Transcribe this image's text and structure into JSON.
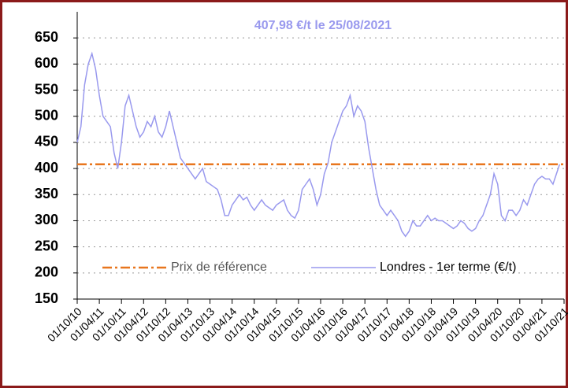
{
  "chart_data": {
    "type": "line",
    "title": "407,98 €/t le 25/08/2021",
    "x": [
      "01/10/10",
      "01/11/10",
      "01/12/10",
      "01/01/11",
      "01/02/11",
      "01/03/11",
      "01/04/11",
      "01/05/11",
      "01/06/11",
      "01/07/11",
      "01/08/11",
      "01/09/11",
      "01/10/11",
      "01/11/11",
      "01/12/11",
      "01/01/12",
      "01/02/12",
      "01/03/12",
      "01/04/12",
      "01/05/12",
      "01/06/12",
      "01/07/12",
      "01/08/12",
      "01/09/12",
      "01/10/12",
      "01/11/12",
      "01/12/12",
      "01/01/13",
      "01/02/13",
      "01/03/13",
      "01/04/13",
      "01/05/13",
      "01/06/13",
      "01/07/13",
      "01/08/13",
      "01/09/13",
      "01/10/13",
      "01/11/13",
      "01/12/13",
      "01/01/14",
      "01/02/14",
      "01/03/14",
      "01/04/14",
      "01/05/14",
      "01/06/14",
      "01/07/14",
      "01/08/14",
      "01/09/14",
      "01/10/14",
      "01/11/14",
      "01/12/14",
      "01/01/15",
      "01/02/15",
      "01/03/15",
      "01/04/15",
      "01/05/15",
      "01/06/15",
      "01/07/15",
      "01/08/15",
      "01/09/15",
      "01/10/15",
      "01/11/15",
      "01/12/15",
      "01/01/16",
      "01/02/16",
      "01/03/16",
      "01/04/16",
      "01/05/16",
      "01/06/16",
      "01/07/16",
      "01/08/16",
      "01/09/16",
      "01/10/16",
      "01/11/16",
      "01/12/16",
      "01/01/17",
      "01/02/17",
      "01/03/17",
      "01/04/17",
      "01/05/17",
      "01/06/17",
      "01/07/17",
      "01/08/17",
      "01/09/17",
      "01/10/17",
      "01/11/17",
      "01/12/17",
      "01/01/18",
      "01/02/18",
      "01/03/18",
      "01/04/18",
      "01/05/18",
      "01/06/18",
      "01/07/18",
      "01/08/18",
      "01/09/18",
      "01/10/18",
      "01/11/18",
      "01/12/18",
      "01/01/19",
      "01/02/19",
      "01/03/19",
      "01/04/19",
      "01/05/19",
      "01/06/19",
      "01/07/19",
      "01/08/19",
      "01/09/19",
      "01/10/19",
      "01/11/19",
      "01/12/19",
      "01/01/20",
      "01/02/20",
      "01/03/20",
      "01/04/20",
      "01/05/20",
      "01/06/20",
      "01/07/20",
      "01/08/20",
      "01/09/20",
      "01/10/20",
      "01/11/20",
      "01/12/20",
      "01/01/21",
      "01/02/21",
      "01/03/21",
      "01/04/21",
      "01/05/21",
      "01/06/21",
      "01/07/21",
      "25/08/21"
    ],
    "series": [
      {
        "name": "Londres - 1er terme (€/t)",
        "color": "#9999ee",
        "values": [
          450,
          480,
          560,
          600,
          620,
          590,
          540,
          500,
          490,
          480,
          430,
          400,
          450,
          520,
          540,
          510,
          480,
          460,
          470,
          490,
          480,
          500,
          470,
          460,
          480,
          510,
          480,
          450,
          420,
          410,
          400,
          390,
          380,
          390,
          400,
          375,
          370,
          365,
          360,
          340,
          310,
          310,
          330,
          340,
          350,
          340,
          345,
          330,
          320,
          330,
          340,
          330,
          325,
          320,
          330,
          335,
          340,
          320,
          310,
          305,
          320,
          360,
          370,
          380,
          360,
          330,
          350,
          390,
          410,
          450,
          470,
          490,
          510,
          520,
          540,
          500,
          520,
          510,
          490,
          440,
          400,
          360,
          330,
          320,
          310,
          320,
          310,
          300,
          280,
          270,
          280,
          300,
          290,
          290,
          300,
          310,
          300,
          305,
          300,
          300,
          295,
          290,
          285,
          290,
          300,
          295,
          285,
          280,
          285,
          300,
          310,
          330,
          350,
          390,
          370,
          310,
          300,
          320,
          320,
          310,
          320,
          340,
          330,
          350,
          370,
          380,
          385,
          380,
          380,
          370,
          407.98
        ]
      }
    ],
    "reference": {
      "name": "Prix de référence",
      "value": 407.98,
      "color": "#e8761e"
    },
    "xlim": [
      "01/10/10",
      "01/10/21"
    ],
    "xticks": [
      "01/10/10",
      "01/04/11",
      "01/10/11",
      "01/04/12",
      "01/10/12",
      "01/04/13",
      "01/10/13",
      "01/04/14",
      "01/10/14",
      "01/04/15",
      "01/10/15",
      "01/04/16",
      "01/10/16",
      "01/04/17",
      "01/10/17",
      "01/04/18",
      "01/10/18",
      "01/04/19",
      "01/10/19",
      "01/04/20",
      "01/10/20",
      "01/04/21",
      "01/10/21"
    ],
    "ylim": [
      150,
      700
    ],
    "yticks": [
      150,
      200,
      250,
      300,
      350,
      400,
      450,
      500,
      550,
      600,
      650
    ],
    "grid": true,
    "legend": "lower center"
  }
}
